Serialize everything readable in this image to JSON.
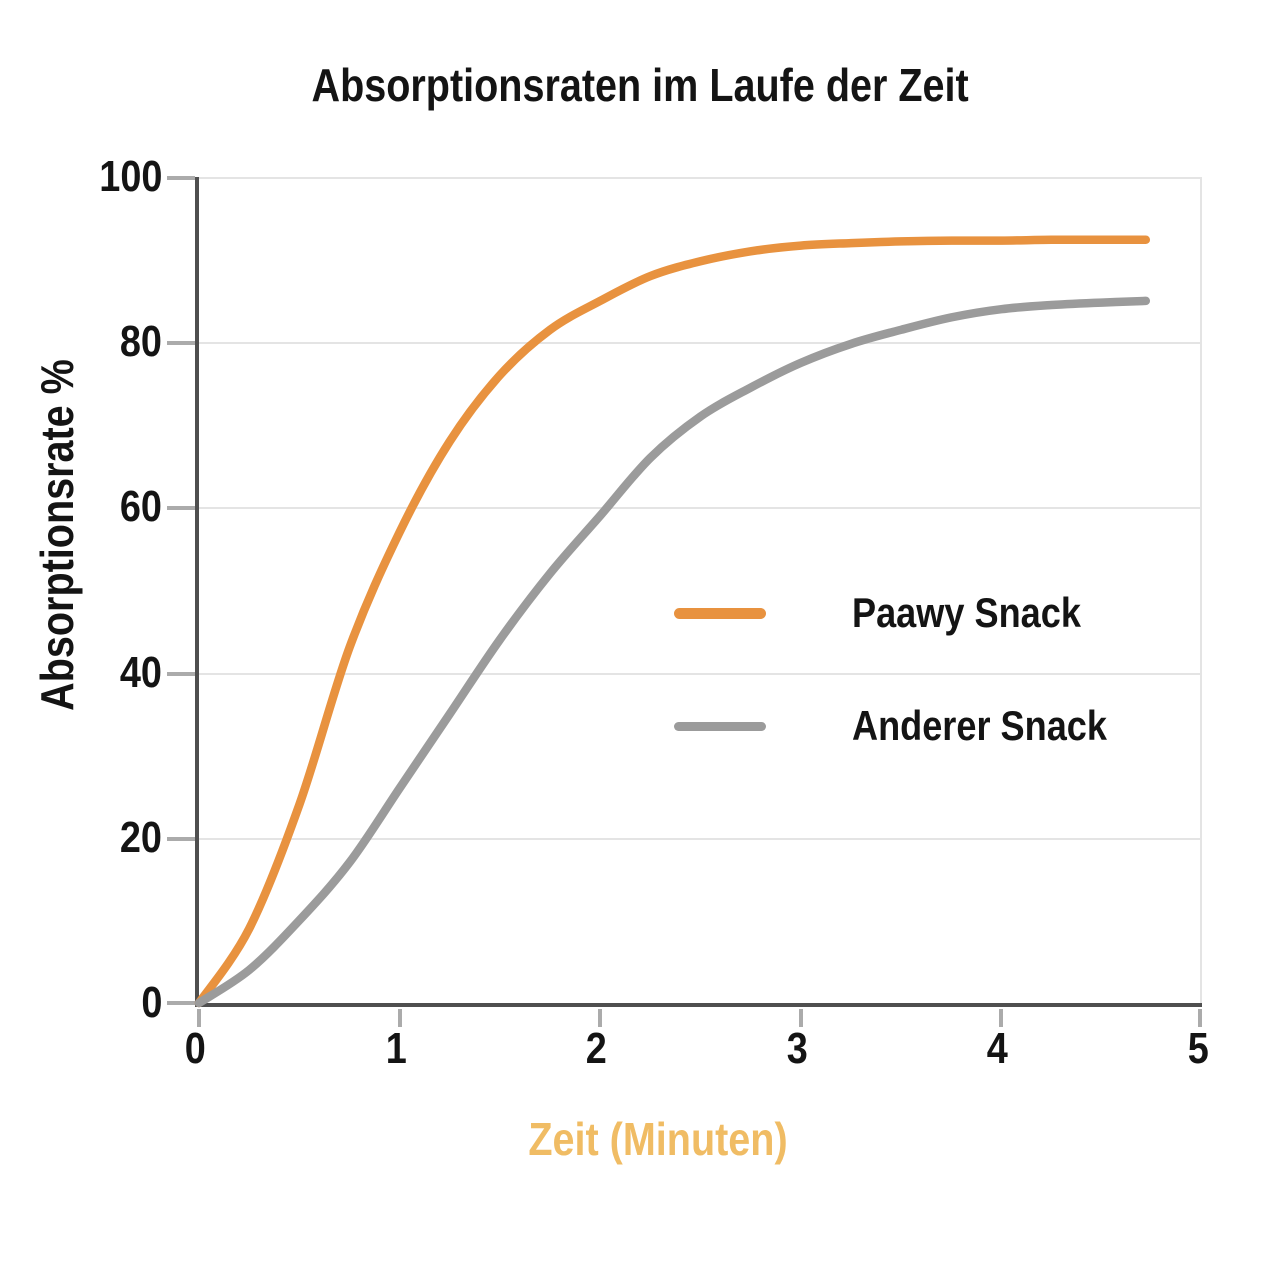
{
  "title": "Absorptionsraten im Laufe der Zeit",
  "chart_data": {
    "type": "line",
    "title": "Absorptionsraten im Laufe der Zeit",
    "xlabel": "Zeit (Minuten)",
    "ylabel": "Absorptionsrate %",
    "xlim": [
      0,
      5
    ],
    "ylim": [
      0,
      100
    ],
    "grid": "horizontal",
    "legend_position": "center-right-inside",
    "x_ticks": [
      "0",
      "1",
      "2",
      "3",
      "4",
      "5"
    ],
    "y_ticks": [
      "0",
      "20",
      "40",
      "60",
      "80",
      "100"
    ],
    "x": [
      0,
      0.25,
      0.5,
      0.75,
      1,
      1.25,
      1.5,
      1.75,
      2,
      2.25,
      2.5,
      2.75,
      3,
      3.25,
      3.5,
      3.75,
      4,
      4.25,
      4.5,
      4.72
    ],
    "series": [
      {
        "name": "Paawy Snack",
        "color": "#E8923F",
        "values": [
          0,
          9,
          24,
          43,
          57,
          68,
          76,
          81.5,
          85,
          88,
          89.8,
          91,
          91.7,
          92,
          92.2,
          92.3,
          92.3,
          92.4,
          92.4,
          92.4
        ]
      },
      {
        "name": "Anderer Snack",
        "color": "#9B9B9B",
        "values": [
          0,
          4,
          10,
          17,
          26,
          35,
          44,
          52,
          59,
          66,
          71,
          74.5,
          77.5,
          79.8,
          81.5,
          83,
          84,
          84.5,
          84.8,
          85
        ]
      }
    ]
  },
  "colors": {
    "accent_orange": "#E8923F",
    "series_gray": "#9B9B9B",
    "axis_line": "#4F4F4F",
    "tick_mark": "#ABABAB",
    "gridline": "#E4E4E4",
    "xlabel_text": "#F0BC64",
    "text": "#141414",
    "background": "#FFFFFF"
  }
}
